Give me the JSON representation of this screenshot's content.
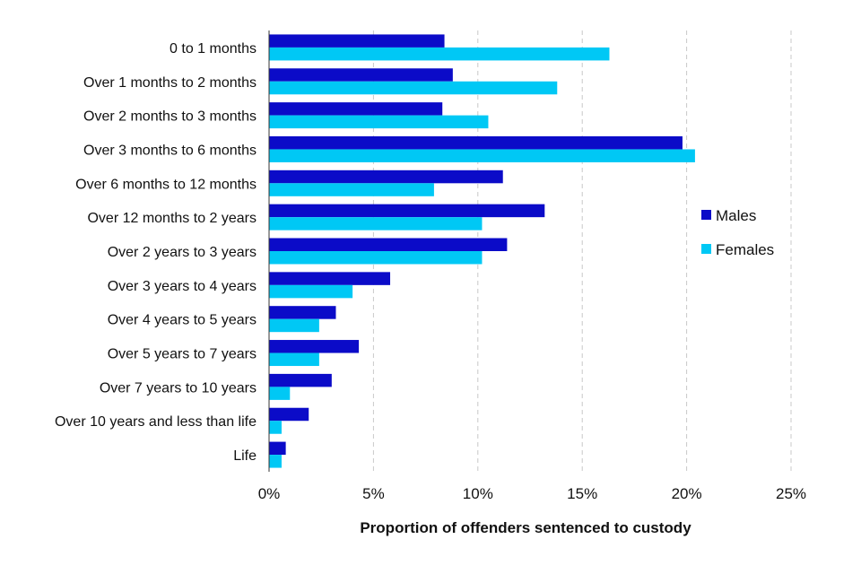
{
  "chart_data": {
    "type": "bar",
    "orientation": "horizontal",
    "title": "",
    "xlabel": "Proportion of offenders sentenced to custody",
    "ylabel": "",
    "xlim": [
      0,
      25
    ],
    "x_ticks": [
      0,
      5,
      10,
      15,
      20,
      25
    ],
    "tick_suffix": "%",
    "grid": true,
    "legend_position": "right",
    "categories": [
      "0 to 1 months",
      "Over 1 months to 2 months",
      "Over 2 months to 3 months",
      "Over 3 months to 6 months",
      "Over 6 months to 12 months",
      "Over 12 months to 2 years",
      "Over 2 years to 3 years",
      "Over 3 years to 4 years",
      "Over 4 years to 5 years",
      "Over 5 years to 7 years",
      "Over 7 years to 10 years",
      "Over 10 years and less than life",
      "Life"
    ],
    "series": [
      {
        "name": "Males",
        "color": "#0B0BC8",
        "values": [
          8.4,
          8.8,
          8.3,
          19.8,
          11.2,
          13.2,
          11.4,
          5.8,
          3.2,
          4.3,
          3.0,
          1.9,
          0.8
        ]
      },
      {
        "name": "Females",
        "color": "#00C8F5",
        "values": [
          16.3,
          13.8,
          10.5,
          20.4,
          7.9,
          10.2,
          10.2,
          4.0,
          2.4,
          2.4,
          1.0,
          0.6,
          0.6
        ]
      }
    ]
  }
}
